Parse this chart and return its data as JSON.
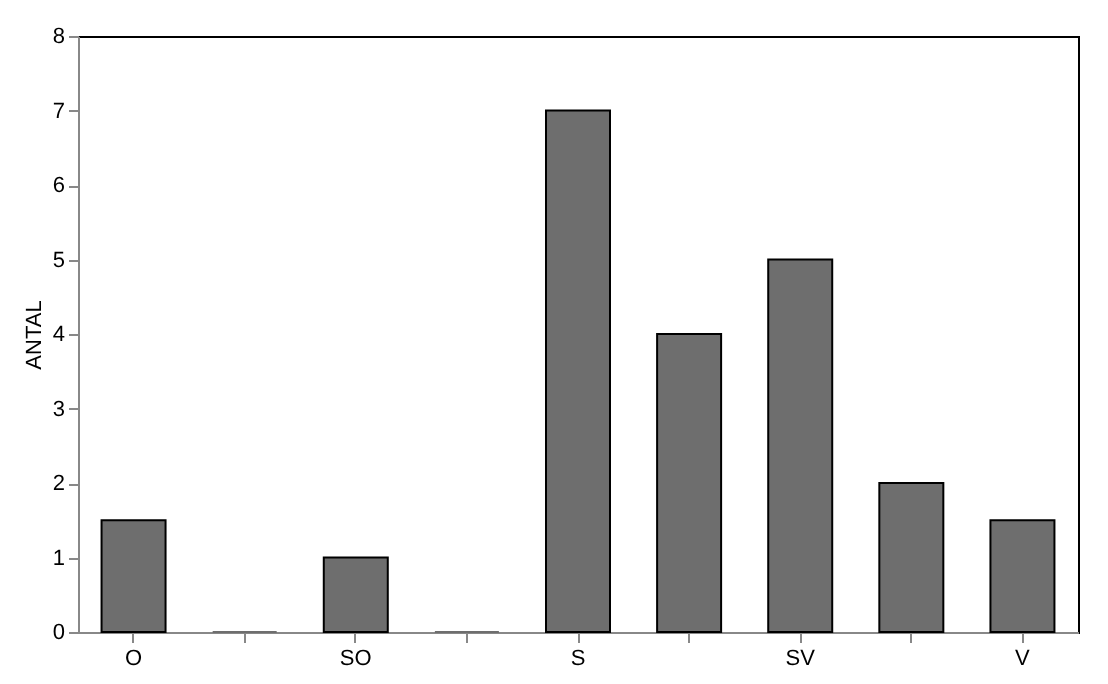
{
  "chart_data": {
    "type": "bar",
    "ylabel": "ANTAL",
    "categories": [
      "O",
      null,
      "SO",
      null,
      "S",
      null,
      "SV",
      null,
      "V"
    ],
    "values": [
      1.5,
      0,
      1,
      0,
      7,
      4,
      5,
      2,
      1.5
    ],
    "color": "#6e6e6e",
    "ylim": [
      0,
      8
    ],
    "yticks": [
      0,
      1,
      2,
      3,
      4,
      5,
      6,
      7,
      8
    ],
    "grid": false
  }
}
